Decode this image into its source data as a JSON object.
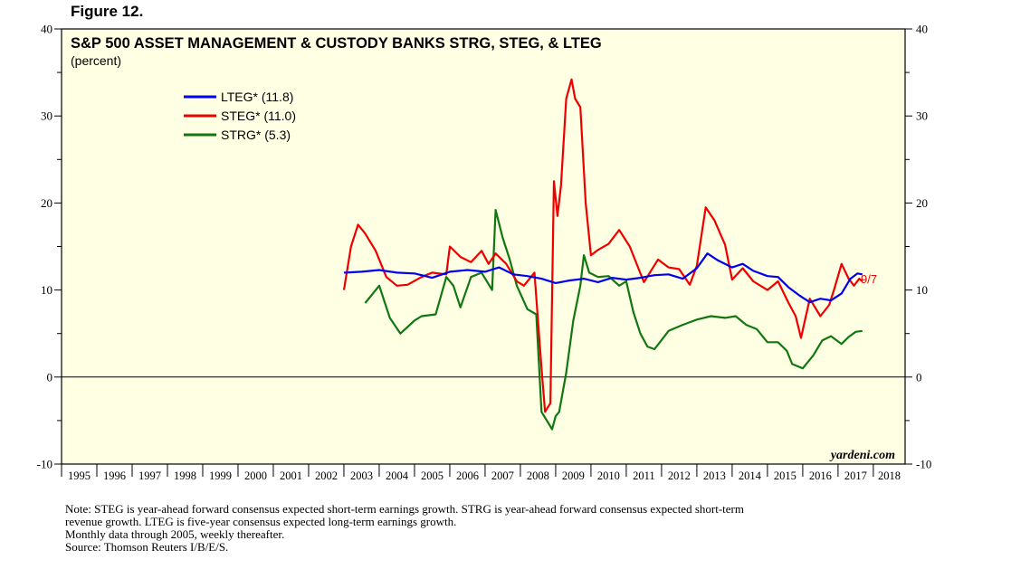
{
  "figure_label": "Figure 12.",
  "colors": {
    "panel_bg": "#ffffe4",
    "lteg": "#0000ee",
    "steg": "#ee0000",
    "strg": "#117711"
  },
  "chart_data": {
    "type": "line",
    "title": "S&P 500 ASSET MANAGEMENT & CUSTODY BANKS STRG, STEG, & LTEG",
    "subtitle": "(percent)",
    "xlabel": "",
    "ylabel": "",
    "ylim": [
      -10,
      40
    ],
    "yticks": [
      -10,
      0,
      10,
      20,
      30,
      40
    ],
    "xlim": [
      1995,
      2018.9
    ],
    "year_labels": [
      "1995",
      "1996",
      "1997",
      "1998",
      "1999",
      "2000",
      "2001",
      "2002",
      "2003",
      "2004",
      "2005",
      "2006",
      "2007",
      "2008",
      "2009",
      "2010",
      "2011",
      "2012",
      "2013",
      "2014",
      "2015",
      "2016",
      "2017",
      "2018"
    ],
    "zero_line": true,
    "legend_position": "top-left",
    "series": [
      {
        "name": "LTEG* (11.8)",
        "color": "#0000ee",
        "x": [
          2003.0,
          2003.5,
          2004.0,
          2004.5,
          2005.0,
          2005.5,
          2006.0,
          2006.5,
          2007.0,
          2007.4,
          2007.8,
          2008.2,
          2008.6,
          2009.0,
          2009.4,
          2009.8,
          2010.2,
          2010.6,
          2011.0,
          2011.4,
          2011.8,
          2012.2,
          2012.6,
          2013.0,
          2013.3,
          2013.6,
          2014.0,
          2014.3,
          2014.6,
          2015.0,
          2015.3,
          2015.6,
          2015.9,
          2016.2,
          2016.5,
          2016.8,
          2017.1,
          2017.35,
          2017.55,
          2017.69
        ],
        "values": [
          12.0,
          12.1,
          12.3,
          12.0,
          11.9,
          11.4,
          12.1,
          12.3,
          12.1,
          12.6,
          11.8,
          11.6,
          11.3,
          10.8,
          11.1,
          11.3,
          10.9,
          11.4,
          11.2,
          11.4,
          11.7,
          11.8,
          11.3,
          12.5,
          14.2,
          13.4,
          12.6,
          13.0,
          12.2,
          11.6,
          11.5,
          10.3,
          9.4,
          8.6,
          9.0,
          8.8,
          9.6,
          11.3,
          11.9,
          11.8
        ]
      },
      {
        "name": "STEG* (11.0)",
        "color": "#ee0000",
        "x": [
          2003.0,
          2003.2,
          2003.4,
          2003.6,
          2003.9,
          2004.2,
          2004.5,
          2004.8,
          2005.2,
          2005.5,
          2005.9,
          2006.0,
          2006.3,
          2006.6,
          2006.9,
          2007.1,
          2007.3,
          2007.6,
          2007.9,
          2008.1,
          2008.4,
          2008.6,
          2008.7,
          2008.85,
          2008.95,
          2009.05,
          2009.15,
          2009.3,
          2009.45,
          2009.55,
          2009.7,
          2009.85,
          2010.0,
          2010.2,
          2010.5,
          2010.8,
          2011.1,
          2011.5,
          2011.9,
          2012.2,
          2012.5,
          2012.8,
          2013.0,
          2013.25,
          2013.5,
          2013.8,
          2014.0,
          2014.3,
          2014.6,
          2015.0,
          2015.3,
          2015.6,
          2015.8,
          2015.95,
          2016.2,
          2016.5,
          2016.75,
          2016.9,
          2017.1,
          2017.3,
          2017.45,
          2017.6,
          2017.69
        ],
        "values": [
          10.0,
          15.0,
          17.5,
          16.5,
          14.5,
          11.5,
          10.5,
          10.6,
          11.5,
          12.0,
          11.8,
          15.0,
          13.8,
          13.2,
          14.5,
          13.0,
          14.2,
          13.0,
          11.0,
          10.5,
          12.0,
          1.0,
          -4.0,
          -3.0,
          22.5,
          18.5,
          22.0,
          32.0,
          34.2,
          32.0,
          31.0,
          20.0,
          14.0,
          14.6,
          15.3,
          16.9,
          15.0,
          10.9,
          13.5,
          12.6,
          12.4,
          10.6,
          12.8,
          19.5,
          18.0,
          15.2,
          11.2,
          12.5,
          11.0,
          10.0,
          11.0,
          8.5,
          7.0,
          4.5,
          9.0,
          7.0,
          8.3,
          10.2,
          13.0,
          11.3,
          10.5,
          11.3,
          11.0
        ]
      },
      {
        "name": "STRG* (5.3)",
        "color": "#117711",
        "x": [
          2003.6,
          2003.8,
          2004.0,
          2004.3,
          2004.6,
          2005.0,
          2005.2,
          2005.6,
          2005.9,
          2006.1,
          2006.3,
          2006.6,
          2006.9,
          2007.2,
          2007.3,
          2007.5,
          2007.7,
          2007.9,
          2008.2,
          2008.45,
          2008.6,
          2008.75,
          2008.9,
          2009.0,
          2009.1,
          2009.3,
          2009.5,
          2009.7,
          2009.8,
          2009.95,
          2010.2,
          2010.5,
          2010.8,
          2011.0,
          2011.2,
          2011.4,
          2011.6,
          2011.8,
          2012.2,
          2012.6,
          2013.0,
          2013.4,
          2013.8,
          2014.1,
          2014.4,
          2014.7,
          2015.0,
          2015.3,
          2015.55,
          2015.7,
          2016.0,
          2016.3,
          2016.55,
          2016.8,
          2017.1,
          2017.3,
          2017.5,
          2017.69
        ],
        "values": [
          8.5,
          9.5,
          10.5,
          6.8,
          5.0,
          6.5,
          7.0,
          7.2,
          11.5,
          10.5,
          8.0,
          11.5,
          12.0,
          10.0,
          19.2,
          16.0,
          13.5,
          10.5,
          7.8,
          7.2,
          -4.0,
          -5.0,
          -6.0,
          -4.5,
          -4.0,
          0.5,
          6.5,
          10.5,
          14.0,
          12.0,
          11.5,
          11.6,
          10.5,
          11.0,
          7.5,
          5.0,
          3.5,
          3.2,
          5.3,
          6.0,
          6.6,
          7.0,
          6.8,
          7.0,
          6.0,
          5.5,
          4.0,
          4.0,
          3.0,
          1.5,
          1.0,
          2.5,
          4.2,
          4.7,
          3.8,
          4.6,
          5.2,
          5.3
        ]
      }
    ],
    "end_annotation": "9/7",
    "watermark": "yardeni.com"
  },
  "notes": [
    "Note: STEG is year-ahead forward consensus expected short-term earnings growth. STRG is year-ahead forward consensus expected short-term",
    "revenue growth. LTEG is five-year consensus expected long-term earnings growth.",
    "Monthly data through 2005, weekly thereafter.",
    "Source: Thomson Reuters I/B/E/S."
  ]
}
